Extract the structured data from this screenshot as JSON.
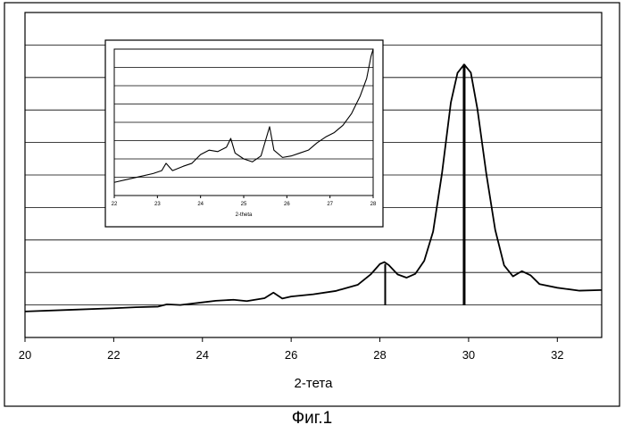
{
  "chart_data": [
    {
      "type": "line",
      "xlabel": "2-тета",
      "ylabel": "",
      "xlim": [
        20,
        33
      ],
      "ylim": [
        0,
        100
      ],
      "x_ticks": [
        "20",
        "22",
        "24",
        "26",
        "28",
        "30",
        "32"
      ],
      "y_ticks": [],
      "grid": "horizontal",
      "legend": "none",
      "color": "#000000",
      "series": [
        {
          "x": [
            20.0,
            21.0,
            22.0,
            22.5,
            23.0,
            23.2,
            23.5,
            24.0,
            24.3,
            24.7,
            25.0,
            25.4,
            25.6,
            25.8,
            26.0,
            26.5,
            27.0,
            27.5,
            27.8,
            28.0,
            28.1,
            28.2,
            28.4,
            28.6,
            28.8,
            29.0,
            29.2,
            29.4,
            29.6,
            29.75,
            29.9,
            30.05,
            30.2,
            30.4,
            30.6,
            30.8,
            31.0,
            31.2,
            31.4,
            31.6,
            32.0,
            32.5,
            33.0
          ],
          "y": [
            8,
            8.5,
            9,
            9.3,
            9.5,
            10.2,
            10,
            10.8,
            11.3,
            11.6,
            11.2,
            12.1,
            13.8,
            12,
            12.6,
            13.3,
            14.3,
            16.2,
            19.5,
            22.6,
            23.2,
            22.3,
            19.4,
            18.4,
            19.6,
            23.6,
            32.6,
            50.5,
            72.3,
            81.4,
            84,
            81.5,
            70.2,
            50.3,
            33.1,
            22.2,
            18.8,
            20.4,
            19.1,
            16.4,
            15.3,
            14.4,
            14.6
          ]
        }
      ],
      "markers": [
        {
          "x": 28.12,
          "y_top": 22.6
        },
        {
          "x": 29.9,
          "y_top": 84
        }
      ]
    },
    {
      "type": "line",
      "xlabel": "2-theta",
      "ylabel": "",
      "xlim": [
        22,
        28
      ],
      "ylim": [
        0,
        100
      ],
      "x_ticks": [
        "22",
        "23",
        "24",
        "25",
        "26",
        "27",
        "28"
      ],
      "y_ticks": [],
      "grid": "horizontal",
      "legend": "none",
      "color": "#000000",
      "series": [
        {
          "x": [
            22.0,
            22.3,
            22.6,
            22.9,
            23.1,
            23.2,
            23.35,
            23.6,
            23.8,
            24.0,
            24.2,
            24.4,
            24.6,
            24.7,
            24.8,
            25.0,
            25.2,
            25.4,
            25.55,
            25.6,
            25.7,
            25.9,
            26.1,
            26.3,
            26.5,
            26.7,
            26.9,
            27.1,
            27.3,
            27.5,
            27.7,
            27.85,
            27.95,
            28.0
          ],
          "y": [
            9,
            11,
            13,
            15,
            17,
            22,
            17,
            20,
            22,
            28,
            31,
            30,
            33,
            39,
            29,
            25,
            23,
            27,
            42,
            47,
            31,
            26,
            27,
            29,
            31,
            36,
            40,
            43,
            48,
            56,
            68,
            80,
            95,
            100
          ]
        }
      ]
    }
  ],
  "caption": "Фиг.1"
}
